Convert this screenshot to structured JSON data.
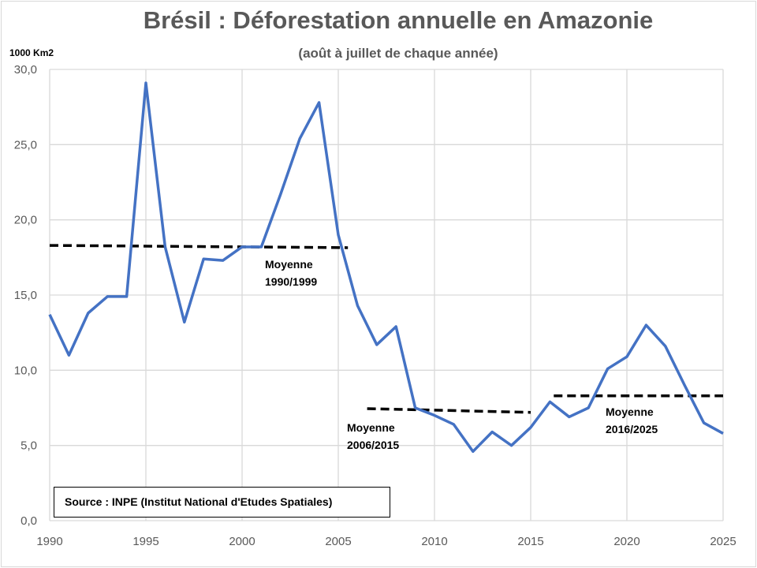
{
  "chart_data": {
    "type": "line",
    "title": "Brésil : Déforestation annuelle en Amazonie",
    "subtitle": "(août à juillet de chaque année)",
    "ylabel": "1000 Km2",
    "xlabel": "",
    "xlim": [
      1990,
      2025
    ],
    "ylim": [
      0,
      30
    ],
    "grid": true,
    "x_ticks": [
      "1990",
      "1995",
      "2000",
      "2005",
      "2010",
      "2015",
      "2020",
      "2025"
    ],
    "y_ticks": [
      "0,0",
      "5,0",
      "10,0",
      "15,0",
      "20,0",
      "25,0",
      "30,0"
    ],
    "series": [
      {
        "name": "Déforestation",
        "color": "#4472c4",
        "x": [
          1990,
          1991,
          1992,
          1993,
          1994,
          1995,
          1996,
          1997,
          1998,
          1999,
          2000,
          2001,
          2002,
          2003,
          2004,
          2005,
          2006,
          2007,
          2008,
          2009,
          2010,
          2011,
          2012,
          2013,
          2014,
          2015,
          2016,
          2017,
          2018,
          2019,
          2020,
          2021,
          2022,
          2023,
          2024,
          2025
        ],
        "values": [
          13.7,
          11.0,
          13.8,
          14.9,
          14.9,
          29.1,
          18.2,
          13.2,
          17.4,
          17.3,
          18.2,
          18.2,
          21.7,
          25.4,
          27.8,
          19.0,
          14.3,
          11.7,
          12.9,
          7.5,
          7.0,
          6.4,
          4.6,
          5.9,
          5.0,
          6.2,
          7.9,
          6.9,
          7.5,
          10.1,
          10.9,
          13.0,
          11.6,
          9.0,
          6.5,
          5.8
        ]
      }
    ],
    "averages": [
      {
        "label1": "Moyenne",
        "label2": "1990/1999",
        "x_start": 1990,
        "x_end": 2005.5,
        "y_start": 18.3,
        "y_end": 18.15
      },
      {
        "label1": "Moyenne",
        "label2": "2006/2015",
        "x_start": 2006.5,
        "x_end": 2015,
        "y_start": 7.45,
        "y_end": 7.2
      },
      {
        "label1": "Moyenne",
        "label2": "2016/2025",
        "x_start": 2016.2,
        "x_end": 2025,
        "y_start": 8.3,
        "y_end": 8.3
      }
    ],
    "source": "Source : INPE (Institut National d'Etudes Spatiales)"
  }
}
